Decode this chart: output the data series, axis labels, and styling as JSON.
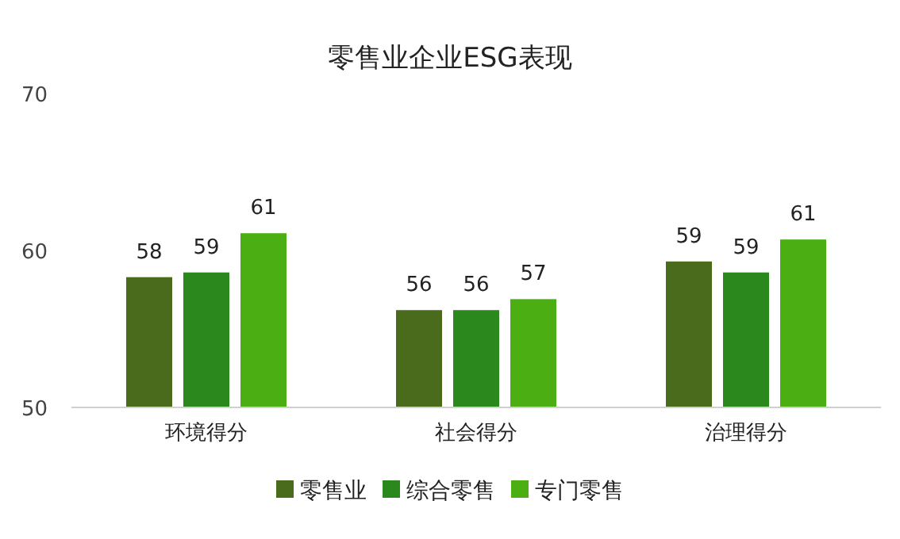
{
  "chart_data": {
    "type": "bar",
    "title": "零售业企业ESG表现",
    "categories": [
      "环境得分",
      "社会得分",
      "治理得分"
    ],
    "series": [
      {
        "name": "零售业",
        "color": "#4a6b1b",
        "values": [
          58.3,
          56.2,
          59.3
        ],
        "value_labels": [
          "58",
          "56",
          "59"
        ]
      },
      {
        "name": "综合零售",
        "color": "#2b881c",
        "values": [
          58.6,
          56.2,
          58.6
        ],
        "value_labels": [
          "59",
          "56",
          "59"
        ]
      },
      {
        "name": "专门零售",
        "color": "#4bae12",
        "values": [
          61.1,
          56.9,
          60.7
        ],
        "value_labels": [
          "61",
          "57",
          "61"
        ]
      }
    ],
    "ylim": [
      50,
      70
    ],
    "yticks": [
      50,
      60,
      70
    ],
    "grid": false,
    "legend": "bottom"
  }
}
